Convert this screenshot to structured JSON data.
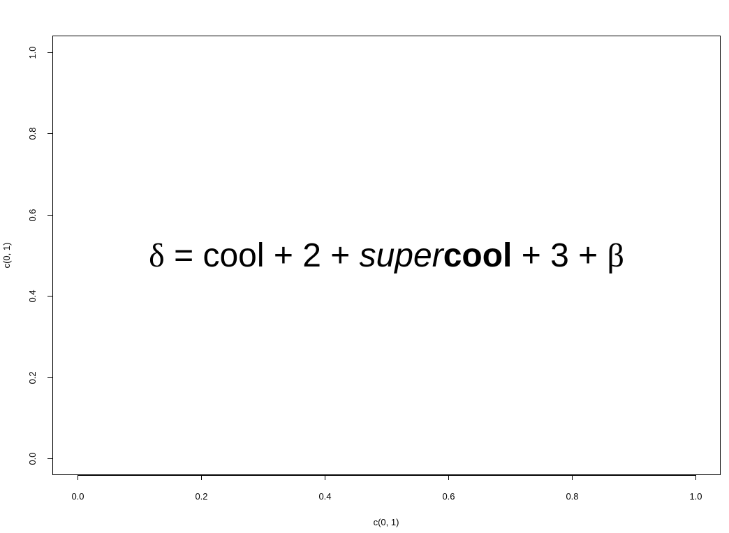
{
  "chart_data": {
    "type": "scatter",
    "xlabel": "c(0, 1)",
    "ylabel": "c(0, 1)",
    "xlim": [
      0,
      1
    ],
    "ylim": [
      0,
      1
    ],
    "x_ticks": [
      "0.0",
      "0.2",
      "0.4",
      "0.6",
      "0.8",
      "1.0"
    ],
    "y_ticks": [
      "0.0",
      "0.2",
      "0.4",
      "0.6",
      "0.8",
      "1.0"
    ],
    "grid": false,
    "series": [
      {
        "x": [
          0,
          1
        ],
        "y": [
          0,
          1
        ],
        "points_visible": false
      }
    ],
    "annotation": {
      "x": 0.5,
      "y": 0.5,
      "parts": [
        "δ",
        " = ",
        "cool",
        " + ",
        "2",
        " + ",
        "super",
        "cool",
        " + ",
        "3",
        " + ",
        "β"
      ]
    }
  }
}
